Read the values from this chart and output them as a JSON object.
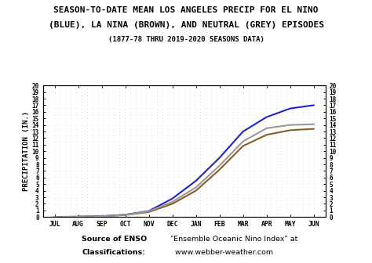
{
  "title_line1": "SEASON-TO-DATE MEAN LOS ANGELES PRECIP FOR EL NINO",
  "title_line2": "(BLUE), LA NINA (BROWN), AND NEUTRAL (GREY) EPISODES",
  "subtitle": "(1877-78 THRU 2019-2020 SEASONS DATA)",
  "months": [
    "JUL",
    "AUG",
    "SEP",
    "OCT",
    "NOV",
    "DEC",
    "JAN",
    "FEB",
    "MAR",
    "APR",
    "MAY",
    "JUN"
  ],
  "ylabel": "PRECIPITATION (IN.)",
  "ylim": [
    0,
    20
  ],
  "yticks": [
    0,
    1,
    2,
    3,
    4,
    5,
    6,
    7,
    8,
    9,
    10,
    11,
    12,
    13,
    14,
    15,
    16,
    17,
    18,
    19,
    20
  ],
  "el_nino": [
    0.0,
    0.05,
    0.12,
    0.35,
    0.9,
    2.8,
    5.5,
    9.0,
    13.0,
    15.2,
    16.5,
    17.0
  ],
  "la_nina": [
    0.0,
    0.03,
    0.1,
    0.3,
    0.75,
    2.0,
    4.0,
    7.2,
    10.8,
    12.5,
    13.2,
    13.4
  ],
  "neutral": [
    0.0,
    0.03,
    0.1,
    0.32,
    0.85,
    2.3,
    4.5,
    7.8,
    11.5,
    13.5,
    14.0,
    14.1
  ],
  "el_nino_color": "#2222cc",
  "la_nina_color": "#8B5A2B",
  "neutral_color": "#999999",
  "source_bold1": "Source of ENSO",
  "source_bold2": "Classifications:",
  "source_normal1": "  \"Ensemble Oceanic Nino Index\" at",
  "source_normal2": "    www.webber-weather.com",
  "bg_color": "#ffffff",
  "dot_color": "#aaaaaa",
  "linewidth": 1.5
}
